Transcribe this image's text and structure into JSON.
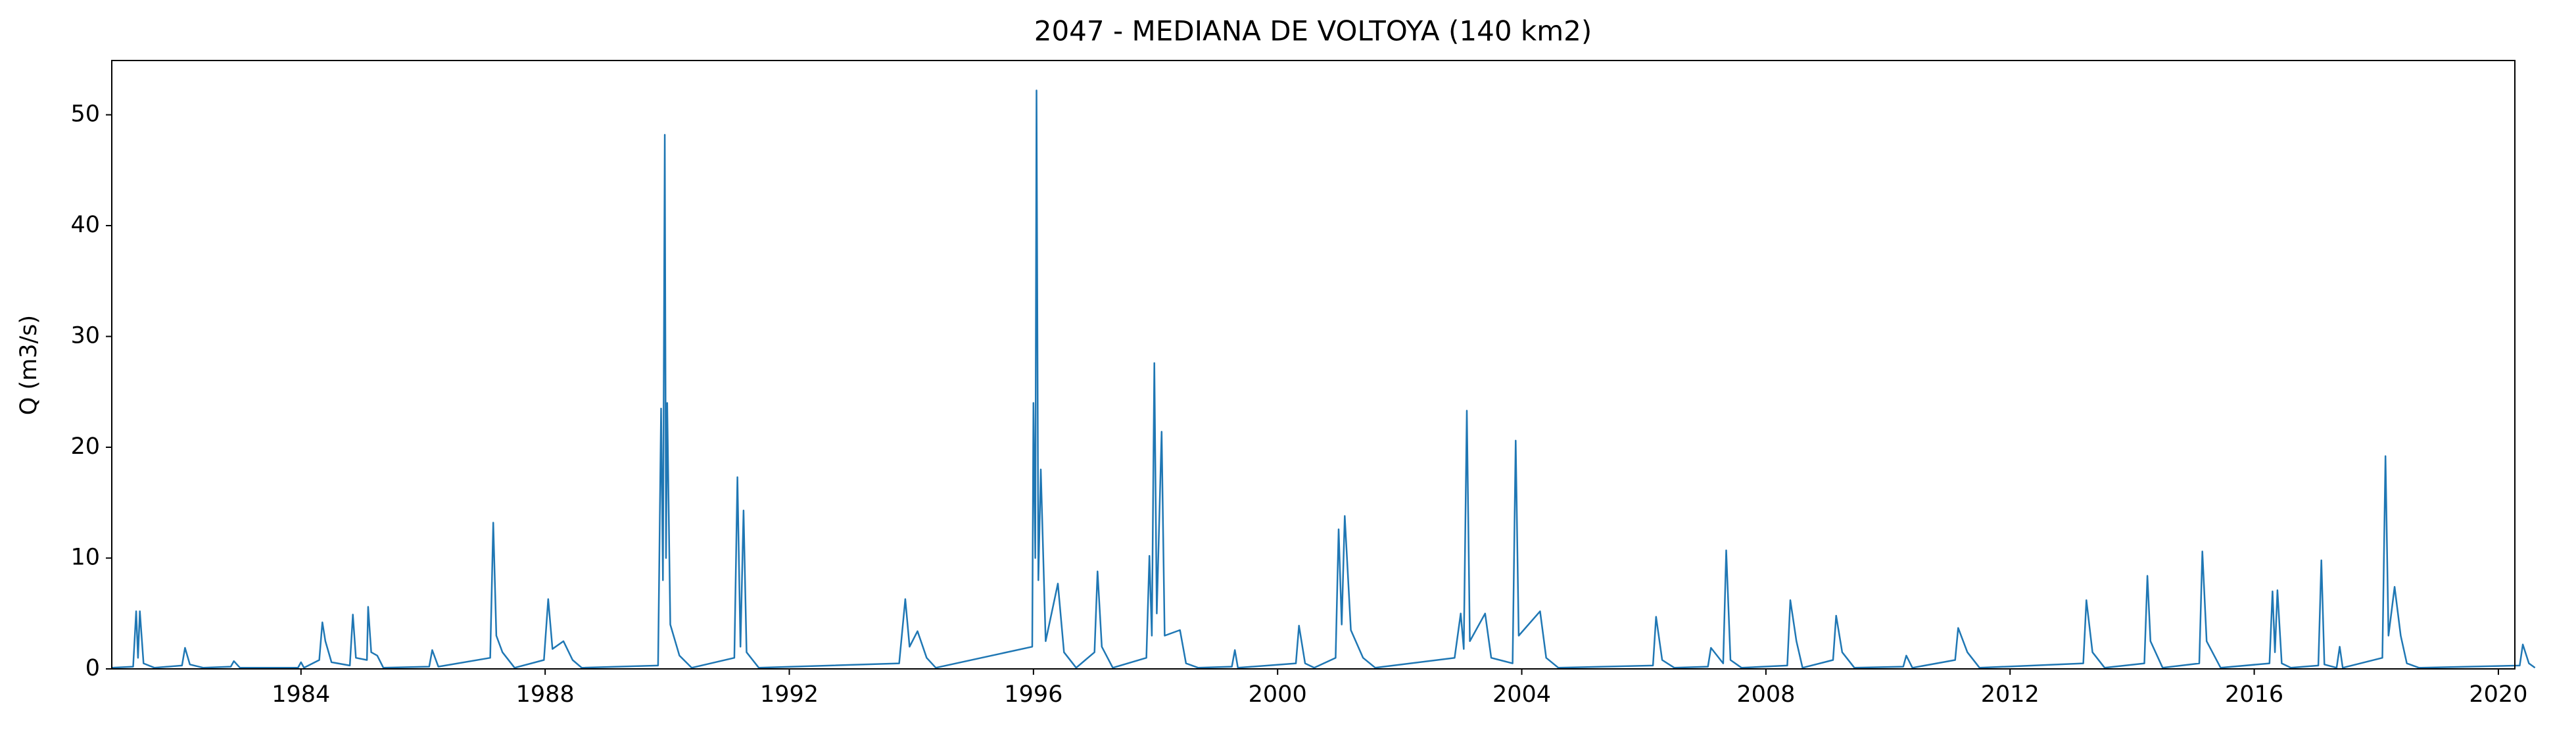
{
  "chart_data": {
    "type": "line",
    "title": "2047 - MEDIANA DE VOLTOYA (140 km2)",
    "y_label": "Q (m3/s)",
    "color": "#1f77b4",
    "x": [
      1980.9,
      1981.25,
      1981.3,
      1981.33,
      1981.36,
      1981.42,
      1981.6,
      1982.05,
      1982.1,
      1982.18,
      1982.4,
      1982.85,
      1982.9,
      1983.0,
      1983.95,
      1984.0,
      1984.05,
      1984.3,
      1984.35,
      1984.4,
      1984.5,
      1984.8,
      1984.85,
      1984.9,
      1985.08,
      1985.1,
      1985.15,
      1985.25,
      1985.35,
      1986.1,
      1986.15,
      1986.25,
      1987.1,
      1987.15,
      1987.2,
      1987.3,
      1987.5,
      1987.98,
      1988.05,
      1988.12,
      1988.3,
      1988.45,
      1988.6,
      1989.85,
      1989.9,
      1989.93,
      1989.96,
      1989.98,
      1990.0,
      1990.05,
      1990.2,
      1990.4,
      1991.1,
      1991.15,
      1991.2,
      1991.25,
      1991.3,
      1991.5,
      1993.8,
      1993.9,
      1993.97,
      1994.1,
      1994.25,
      1994.4,
      1995.98,
      1996.0,
      1996.03,
      1996.05,
      1996.08,
      1996.12,
      1996.2,
      1996.4,
      1996.5,
      1996.7,
      1997.0,
      1997.05,
      1997.12,
      1997.3,
      1997.85,
      1997.9,
      1997.94,
      1997.98,
      1998.02,
      1998.1,
      1998.15,
      1998.4,
      1998.5,
      1998.7,
      1999.25,
      1999.3,
      1999.35,
      2000.3,
      2000.35,
      2000.45,
      2000.6,
      2000.95,
      2001.0,
      2001.05,
      2001.1,
      2001.2,
      2001.4,
      2001.6,
      2002.9,
      2003.0,
      2003.05,
      2003.1,
      2003.15,
      2003.4,
      2003.5,
      2003.85,
      2003.9,
      2003.95,
      2004.3,
      2004.4,
      2004.6,
      2006.15,
      2006.2,
      2006.3,
      2006.5,
      2007.05,
      2007.1,
      2007.3,
      2007.35,
      2007.42,
      2007.6,
      2008.35,
      2008.4,
      2008.5,
      2008.6,
      2009.1,
      2009.15,
      2009.25,
      2009.45,
      2010.25,
      2010.3,
      2010.4,
      2011.1,
      2011.15,
      2011.3,
      2011.5,
      2013.2,
      2013.25,
      2013.35,
      2013.55,
      2014.2,
      2014.25,
      2014.3,
      2014.5,
      2015.1,
      2015.15,
      2015.22,
      2015.45,
      2016.25,
      2016.3,
      2016.34,
      2016.38,
      2016.45,
      2016.6,
      2017.05,
      2017.1,
      2017.15,
      2017.35,
      2017.4,
      2017.45,
      2018.1,
      2018.15,
      2018.2,
      2018.3,
      2018.4,
      2018.5,
      2018.7,
      2020.35,
      2020.4,
      2020.5,
      2020.6
    ],
    "values": [
      0.1,
      0.2,
      5.2,
      1.0,
      5.2,
      0.5,
      0.1,
      0.3,
      1.9,
      0.4,
      0.1,
      0.2,
      0.7,
      0.1,
      0.1,
      0.6,
      0.1,
      0.8,
      4.2,
      2.5,
      0.6,
      0.3,
      4.9,
      1.0,
      0.8,
      5.6,
      1.5,
      1.2,
      0.1,
      0.2,
      1.7,
      0.2,
      1.0,
      13.2,
      3.0,
      1.5,
      0.1,
      0.8,
      6.3,
      1.8,
      2.5,
      0.8,
      0.1,
      0.3,
      23.5,
      8.0,
      48.2,
      10,
      24,
      4,
      1.2,
      0.1,
      1.0,
      17.3,
      2.0,
      14.3,
      1.5,
      0.1,
      0.5,
      6.3,
      2.0,
      3.4,
      1.0,
      0.1,
      2.0,
      24,
      10,
      52.2,
      8,
      18,
      2.5,
      7.7,
      1.5,
      0.1,
      1.5,
      8.8,
      2.0,
      0.1,
      1.0,
      10.2,
      3.0,
      27.6,
      5.0,
      21.4,
      3.0,
      3.5,
      0.5,
      0.1,
      0.2,
      1.7,
      0.1,
      0.5,
      3.9,
      0.5,
      0.1,
      1.0,
      12.6,
      4.0,
      13.8,
      3.5,
      1.0,
      0.1,
      1.0,
      5.0,
      1.8,
      23.3,
      2.5,
      5.0,
      1.0,
      0.5,
      20.6,
      3.0,
      5.2,
      1.0,
      0.1,
      0.3,
      4.7,
      0.8,
      0.1,
      0.2,
      1.9,
      0.5,
      10.7,
      0.8,
      0.1,
      0.3,
      6.2,
      2.5,
      0.1,
      0.8,
      4.8,
      1.5,
      0.1,
      0.2,
      1.2,
      0.1,
      0.8,
      3.7,
      1.5,
      0.1,
      0.5,
      6.2,
      1.5,
      0.1,
      0.5,
      8.4,
      2.5,
      0.1,
      0.5,
      10.6,
      2.5,
      0.1,
      0.5,
      7.0,
      1.5,
      7.1,
      0.5,
      0.1,
      0.3,
      9.8,
      0.4,
      0.1,
      2.0,
      0.1,
      1.0,
      19.2,
      3.0,
      7.4,
      3.0,
      0.5,
      0.1,
      0.3,
      2.2,
      0.5,
      0.1
    ],
    "xlim": [
      1980.9,
      2020.27
    ],
    "ylim": [
      0,
      54.9
    ],
    "xticks": [
      1984,
      1988,
      1992,
      1996,
      2000,
      2004,
      2008,
      2012,
      2016,
      2020
    ],
    "yticks": [
      0,
      10,
      20,
      30,
      40,
      50
    ]
  }
}
